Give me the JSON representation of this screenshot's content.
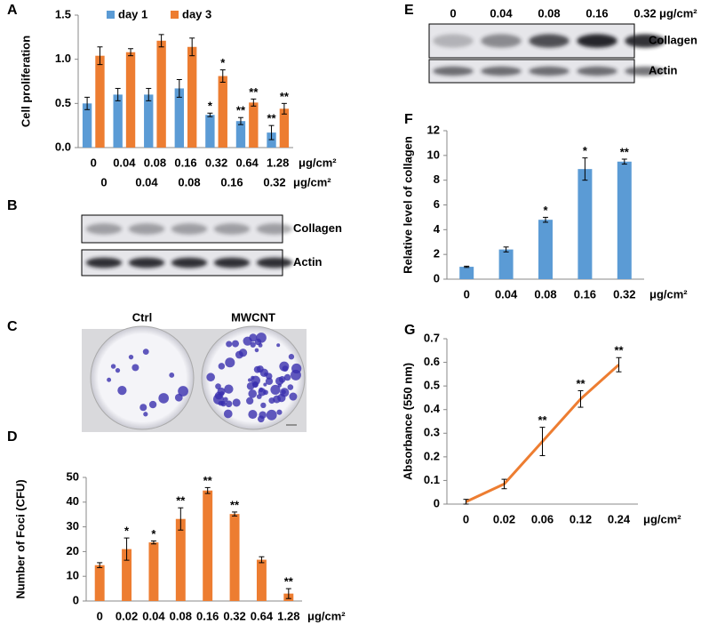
{
  "chart_data": [
    {
      "type": "bar",
      "panel_label": "A",
      "ylabel": "Cell proliferation",
      "unit": "μg/cm²",
      "categories": [
        "0",
        "0.04",
        "0.08",
        "0.16",
        "0.32",
        "0.64",
        "1.28"
      ],
      "series": [
        {
          "name": "day 1",
          "color": "#5b9bd5",
          "values": [
            0.5,
            0.6,
            0.6,
            0.67,
            0.37,
            0.3,
            0.17
          ],
          "errors": [
            0.07,
            0.07,
            0.07,
            0.1,
            0.02,
            0.04,
            0.08
          ],
          "significance": [
            null,
            null,
            null,
            null,
            "*",
            "**",
            "**"
          ]
        },
        {
          "name": "day 3",
          "color": "#ed7d31",
          "values": [
            1.04,
            1.08,
            1.21,
            1.14,
            0.81,
            0.51,
            0.44
          ],
          "errors": [
            0.1,
            0.04,
            0.07,
            0.1,
            0.07,
            0.04,
            0.06
          ],
          "significance": [
            null,
            null,
            null,
            null,
            "*",
            "**",
            "**"
          ]
        }
      ],
      "ylim": [
        0,
        1.5
      ],
      "yticks": [
        {
          "value": 0,
          "label": "0.0"
        },
        0.5,
        {
          "value": 1,
          "label": "1.0"
        },
        1.5
      ],
      "legend": "top"
    },
    {
      "type": "bar",
      "panel_label": "D",
      "ylabel": "Number of Foci (CFU)",
      "unit": "μg/cm²",
      "categories": [
        "0",
        "0.02",
        "0.04",
        "0.08",
        "0.16",
        "0.32",
        "0.64",
        "1.28"
      ],
      "series": [
        {
          "color": "#ed7d31",
          "values": [
            14.5,
            21,
            23.7,
            33.2,
            44.7,
            35.2,
            16.7,
            3
          ],
          "errors": [
            1,
            4.5,
            0.6,
            4.5,
            1.2,
            0.8,
            1.2,
            2
          ],
          "significance": [
            null,
            "*",
            "*",
            "**",
            "**",
            "**",
            null,
            "**"
          ]
        }
      ],
      "ylim": [
        0,
        50
      ],
      "yticks": [
        0,
        10,
        20,
        30,
        40,
        50
      ]
    },
    {
      "type": "bar",
      "panel_label": "F",
      "ylabel": "Relative level of collagen",
      "unit": "μg/cm²",
      "categories": [
        "0",
        "0.04",
        "0.08",
        "0.16",
        "0.32"
      ],
      "series": [
        {
          "color": "#5b9bd5",
          "values": [
            1,
            2.4,
            4.8,
            8.9,
            9.5
          ],
          "errors": [
            0.05,
            0.2,
            0.2,
            0.9,
            0.2
          ],
          "significance": [
            null,
            null,
            "*",
            "*",
            "**"
          ]
        }
      ],
      "ylim": [
        0,
        12
      ],
      "yticks": [
        0,
        2,
        4,
        6,
        8,
        10,
        12
      ]
    },
    {
      "type": "line",
      "panel_label": "G",
      "ylabel": "Absorbance (550 nm)",
      "unit": "μg/cm²",
      "categories": [
        "0",
        "0.02",
        "0.06",
        "0.12",
        "0.24"
      ],
      "series": [
        {
          "color": "#ed7d31",
          "values": [
            0.01,
            0.085,
            0.265,
            0.445,
            0.59
          ],
          "errors": [
            0.01,
            0.02,
            0.06,
            0.035,
            0.03
          ],
          "significance": [
            null,
            null,
            "**",
            "**",
            "**"
          ]
        }
      ],
      "ylim": [
        0,
        0.7
      ],
      "yticks": [
        0,
        0.1,
        0.2,
        0.3,
        0.4,
        0.5,
        0.6,
        0.7
      ]
    }
  ],
  "blots": [
    {
      "panel_label": "B",
      "lanes": [
        "0",
        "0.04",
        "0.08",
        "0.16",
        "0.32"
      ],
      "unit": "μg/cm²",
      "bands": [
        "Collagen",
        "Actin"
      ]
    },
    {
      "panel_label": "E",
      "lanes": [
        "0",
        "0.04",
        "0.08",
        "0.16",
        "0.32"
      ],
      "unit": "μg/cm²",
      "bands": [
        "Collagen",
        "Actin"
      ]
    }
  ],
  "photo": {
    "panel_label": "C",
    "labels": [
      "Ctrl",
      "MWCNT"
    ]
  }
}
